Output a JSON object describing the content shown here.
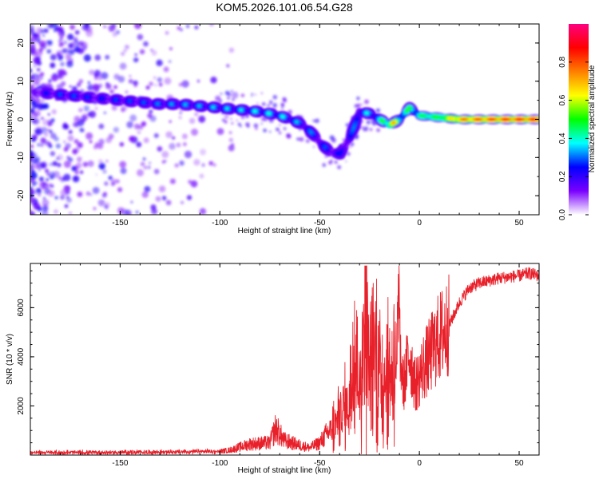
{
  "title": "KOM5.2026.101.06.54.G28",
  "chart_data": [
    {
      "type": "heatmap",
      "name": "spectrogram",
      "title": "KOM5.2026.101.06.54.G28",
      "xlabel": "Height of straight line (km)",
      "ylabel": "Frequency (Hz)",
      "xlim": [
        -195,
        60
      ],
      "ylim": [
        -25,
        25
      ],
      "x_ticks": [
        "-150",
        "-100",
        "-50",
        "0",
        "50"
      ],
      "y_ticks": [
        "20",
        "10",
        "0",
        "-10",
        "-20"
      ],
      "x_tick_values": [
        -150,
        -100,
        -50,
        0,
        50
      ],
      "y_tick_values": [
        20,
        10,
        0,
        -10,
        -20
      ],
      "colorbar": {
        "label": "Normalized spectral amplitude",
        "range": [
          0,
          1
        ],
        "ticks": [
          "0.0",
          "0.2",
          "0.4",
          "0.6",
          "0.8"
        ],
        "tick_values": [
          0.0,
          0.2,
          0.4,
          0.6,
          0.8
        ],
        "colors": [
          "#ffffff",
          "#7a00ff",
          "#0000ff",
          "#00ffff",
          "#00ff00",
          "#ffff00",
          "#ff7f00",
          "#ff0000",
          "#ff0080"
        ]
      },
      "ridge": {
        "x": [
          -190,
          -180,
          -170,
          -160,
          -150,
          -140,
          -130,
          -120,
          -110,
          -100,
          -90,
          -80,
          -70,
          -60,
          -55,
          -50,
          -45,
          -40,
          -35,
          -30,
          -25,
          -20,
          -15,
          -10,
          -5,
          0,
          10,
          20,
          30,
          40,
          50,
          60
        ],
        "y": [
          7,
          6.5,
          6,
          5.5,
          5,
          4.5,
          4,
          4,
          3.5,
          3,
          2.5,
          2,
          1,
          -1,
          -3,
          -6,
          -8.5,
          -9,
          -5,
          2,
          1.5,
          0,
          -1.5,
          0,
          3,
          1,
          0.5,
          0,
          0,
          0,
          0,
          0
        ],
        "amplitude": [
          0.2,
          0.25,
          0.25,
          0.22,
          0.25,
          0.25,
          0.28,
          0.3,
          0.3,
          0.32,
          0.32,
          0.35,
          0.35,
          0.3,
          0.28,
          0.25,
          0.25,
          0.22,
          0.25,
          0.3,
          0.35,
          0.35,
          0.75,
          0.5,
          0.45,
          0.5,
          0.55,
          0.8,
          0.85,
          0.88,
          0.9,
          0.9
        ]
      }
    },
    {
      "type": "line",
      "name": "snr",
      "xlabel": "Height of straight line (km)",
      "ylabel": "SNR (10 * v/v)",
      "xlim": [
        -195,
        60
      ],
      "ylim": [
        0,
        7800
      ],
      "x_ticks": [
        "-150",
        "-100",
        "-50",
        "0",
        "50"
      ],
      "y_ticks": [
        "2000",
        "4000",
        "6000"
      ],
      "x_tick_values": [
        -150,
        -100,
        -50,
        0,
        50
      ],
      "y_tick_values": [
        2000,
        4000,
        6000
      ],
      "color": "#e8202a",
      "series": [
        {
          "name": "SNR",
          "x": [
            -195,
            -160,
            -130,
            -100,
            -95,
            -85,
            -75,
            -72,
            -68,
            -60,
            -55,
            -50,
            -45,
            -40,
            -35,
            -32,
            -30,
            -27,
            -25,
            -22,
            -20,
            -15,
            -12,
            -10,
            -8,
            -5,
            -2,
            0,
            2,
            5,
            8,
            10,
            15,
            20,
            25,
            30,
            40,
            50,
            55,
            60
          ],
          "y": [
            100,
            100,
            120,
            150,
            200,
            450,
            500,
            1100,
            600,
            400,
            300,
            500,
            1000,
            1500,
            2200,
            4000,
            2500,
            5500,
            3500,
            4500,
            3500,
            3000,
            3800,
            4500,
            2800,
            4200,
            2800,
            3200,
            3600,
            4000,
            4500,
            4800,
            5300,
            6200,
            6800,
            7000,
            7200,
            7300,
            7400,
            7300
          ]
        }
      ]
    }
  ]
}
